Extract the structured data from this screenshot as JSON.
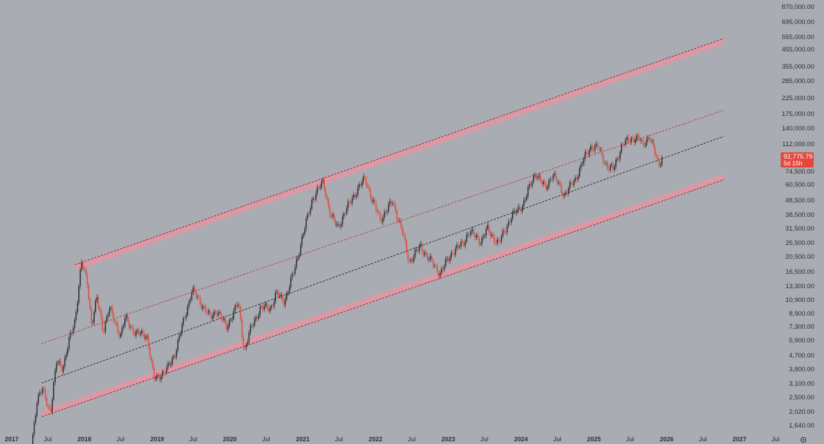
{
  "chart_data": {
    "type": "candlestick",
    "scale": "log",
    "colors": {
      "background": "#a9acb2",
      "up_candle": "#2a2b30",
      "down_candle": "#e0483a",
      "channel_band": "#d99aa6",
      "channel_line": "#7a1f2c",
      "mid_line": "#b8323d",
      "regression_line": "#1a1b20",
      "price_tag": "#e5473b"
    },
    "y_ticks": [
      "870,000.00",
      "695,000.00",
      "555,000.00",
      "455,000.00",
      "355,000.00",
      "285,000.00",
      "225,000.00",
      "175,000.00",
      "140,000.00",
      "112,000.00",
      "74,500.00",
      "60,500.00",
      "48,500.00",
      "38,500.00",
      "31,500.00",
      "25,500.00",
      "20,500.00",
      "16,500.00",
      "13,300.00",
      "10,900.00",
      "8,900.00",
      "7,300.00",
      "5,900.00",
      "4,700.00",
      "3,800.00",
      "3,100.00",
      "2,500.00",
      "2,020.00",
      "1,640.00"
    ],
    "x_ticks": [
      "2017",
      "Jul",
      "2018",
      "Jul",
      "2019",
      "Jul",
      "2020",
      "Jul",
      "2021",
      "Jul",
      "2022",
      "Jul",
      "2023",
      "Jul",
      "2024",
      "Jul",
      "2025",
      "Jul",
      "2026",
      "Jul",
      "2027",
      "Jul"
    ],
    "last_price": {
      "value": "92,775.79",
      "countdown": "5d 15h"
    },
    "channels": {
      "upper_band": [
        {
          "date": "2017-11-15",
          "value": 17500
        },
        {
          "date": "2026-10-15",
          "value": 520000
        }
      ],
      "lower_band": [
        {
          "date": "2017-06-01",
          "value": 1950
        },
        {
          "date": "2026-10-15",
          "value": 68000
        }
      ],
      "mid_line": [
        {
          "date": "2017-06-01",
          "value": 5600
        },
        {
          "date": "2026-10-15",
          "value": 185000
        }
      ],
      "regression_line": [
        {
          "date": "2017-06-01",
          "value": 3100
        },
        {
          "date": "2026-10-15",
          "value": 125000
        }
      ]
    },
    "ohlc_anchors": [
      {
        "date": "2017-03-20",
        "value": 1000
      },
      {
        "date": "2017-04-10",
        "value": 1200
      },
      {
        "date": "2017-05-08",
        "value": 2400
      },
      {
        "date": "2017-06-05",
        "value": 2800
      },
      {
        "date": "2017-07-15",
        "value": 2000
      },
      {
        "date": "2017-08-15",
        "value": 4300
      },
      {
        "date": "2017-09-15",
        "value": 3900
      },
      {
        "date": "2017-10-15",
        "value": 5700
      },
      {
        "date": "2017-11-15",
        "value": 8000
      },
      {
        "date": "2017-12-17",
        "value": 19000
      },
      {
        "date": "2018-01-15",
        "value": 14000
      },
      {
        "date": "2018-02-06",
        "value": 7500
      },
      {
        "date": "2018-03-05",
        "value": 11000
      },
      {
        "date": "2018-04-05",
        "value": 6800
      },
      {
        "date": "2018-05-05",
        "value": 9500
      },
      {
        "date": "2018-07-01",
        "value": 6300
      },
      {
        "date": "2018-07-25",
        "value": 8200
      },
      {
        "date": "2018-09-15",
        "value": 6500
      },
      {
        "date": "2018-11-10",
        "value": 6400
      },
      {
        "date": "2018-12-15",
        "value": 3300
      },
      {
        "date": "2019-02-15",
        "value": 3700
      },
      {
        "date": "2019-04-05",
        "value": 5000
      },
      {
        "date": "2019-05-15",
        "value": 8000
      },
      {
        "date": "2019-06-26",
        "value": 12500
      },
      {
        "date": "2019-08-15",
        "value": 10000
      },
      {
        "date": "2019-09-25",
        "value": 8200
      },
      {
        "date": "2019-10-25",
        "value": 9300
      },
      {
        "date": "2019-12-15",
        "value": 7200
      },
      {
        "date": "2020-02-13",
        "value": 10300
      },
      {
        "date": "2020-03-13",
        "value": 5000
      },
      {
        "date": "2020-04-15",
        "value": 7000
      },
      {
        "date": "2020-06-01",
        "value": 9500
      },
      {
        "date": "2020-07-25",
        "value": 9600
      },
      {
        "date": "2020-08-20",
        "value": 11800
      },
      {
        "date": "2020-10-01",
        "value": 10600
      },
      {
        "date": "2020-11-15",
        "value": 16000
      },
      {
        "date": "2020-12-28",
        "value": 27000
      },
      {
        "date": "2021-02-20",
        "value": 50000
      },
      {
        "date": "2021-04-14",
        "value": 63000
      },
      {
        "date": "2021-05-20",
        "value": 38000
      },
      {
        "date": "2021-06-25",
        "value": 32000
      },
      {
        "date": "2021-09-07",
        "value": 50000
      },
      {
        "date": "2021-11-10",
        "value": 67000
      },
      {
        "date": "2021-12-15",
        "value": 48000
      },
      {
        "date": "2022-01-24",
        "value": 36000
      },
      {
        "date": "2022-03-28",
        "value": 47000
      },
      {
        "date": "2022-05-15",
        "value": 30000
      },
      {
        "date": "2022-06-18",
        "value": 19000
      },
      {
        "date": "2022-08-14",
        "value": 24000
      },
      {
        "date": "2022-10-01",
        "value": 19500
      },
      {
        "date": "2022-11-21",
        "value": 16000
      },
      {
        "date": "2023-01-20",
        "value": 22000
      },
      {
        "date": "2023-03-15",
        "value": 25000
      },
      {
        "date": "2023-04-14",
        "value": 30000
      },
      {
        "date": "2023-06-15",
        "value": 26000
      },
      {
        "date": "2023-07-14",
        "value": 31000
      },
      {
        "date": "2023-09-11",
        "value": 25000
      },
      {
        "date": "2023-11-10",
        "value": 37000
      },
      {
        "date": "2024-01-10",
        "value": 45000
      },
      {
        "date": "2024-03-14",
        "value": 73000
      },
      {
        "date": "2024-05-01",
        "value": 57000
      },
      {
        "date": "2024-06-07",
        "value": 71000
      },
      {
        "date": "2024-08-05",
        "value": 52000
      },
      {
        "date": "2024-09-28",
        "value": 65000
      },
      {
        "date": "2024-11-15",
        "value": 91000
      },
      {
        "date": "2024-12-17",
        "value": 107000
      },
      {
        "date": "2025-01-20",
        "value": 106000
      },
      {
        "date": "2025-03-10",
        "value": 79000
      },
      {
        "date": "2025-04-08",
        "value": 76000
      },
      {
        "date": "2025-05-22",
        "value": 110000
      },
      {
        "date": "2025-07-14",
        "value": 122000
      },
      {
        "date": "2025-08-15",
        "value": 121000
      },
      {
        "date": "2025-09-01",
        "value": 109000
      },
      {
        "date": "2025-10-06",
        "value": 126000
      },
      {
        "date": "2025-11-21",
        "value": 82000
      },
      {
        "date": "2025-12-10",
        "value": 92776
      }
    ]
  }
}
